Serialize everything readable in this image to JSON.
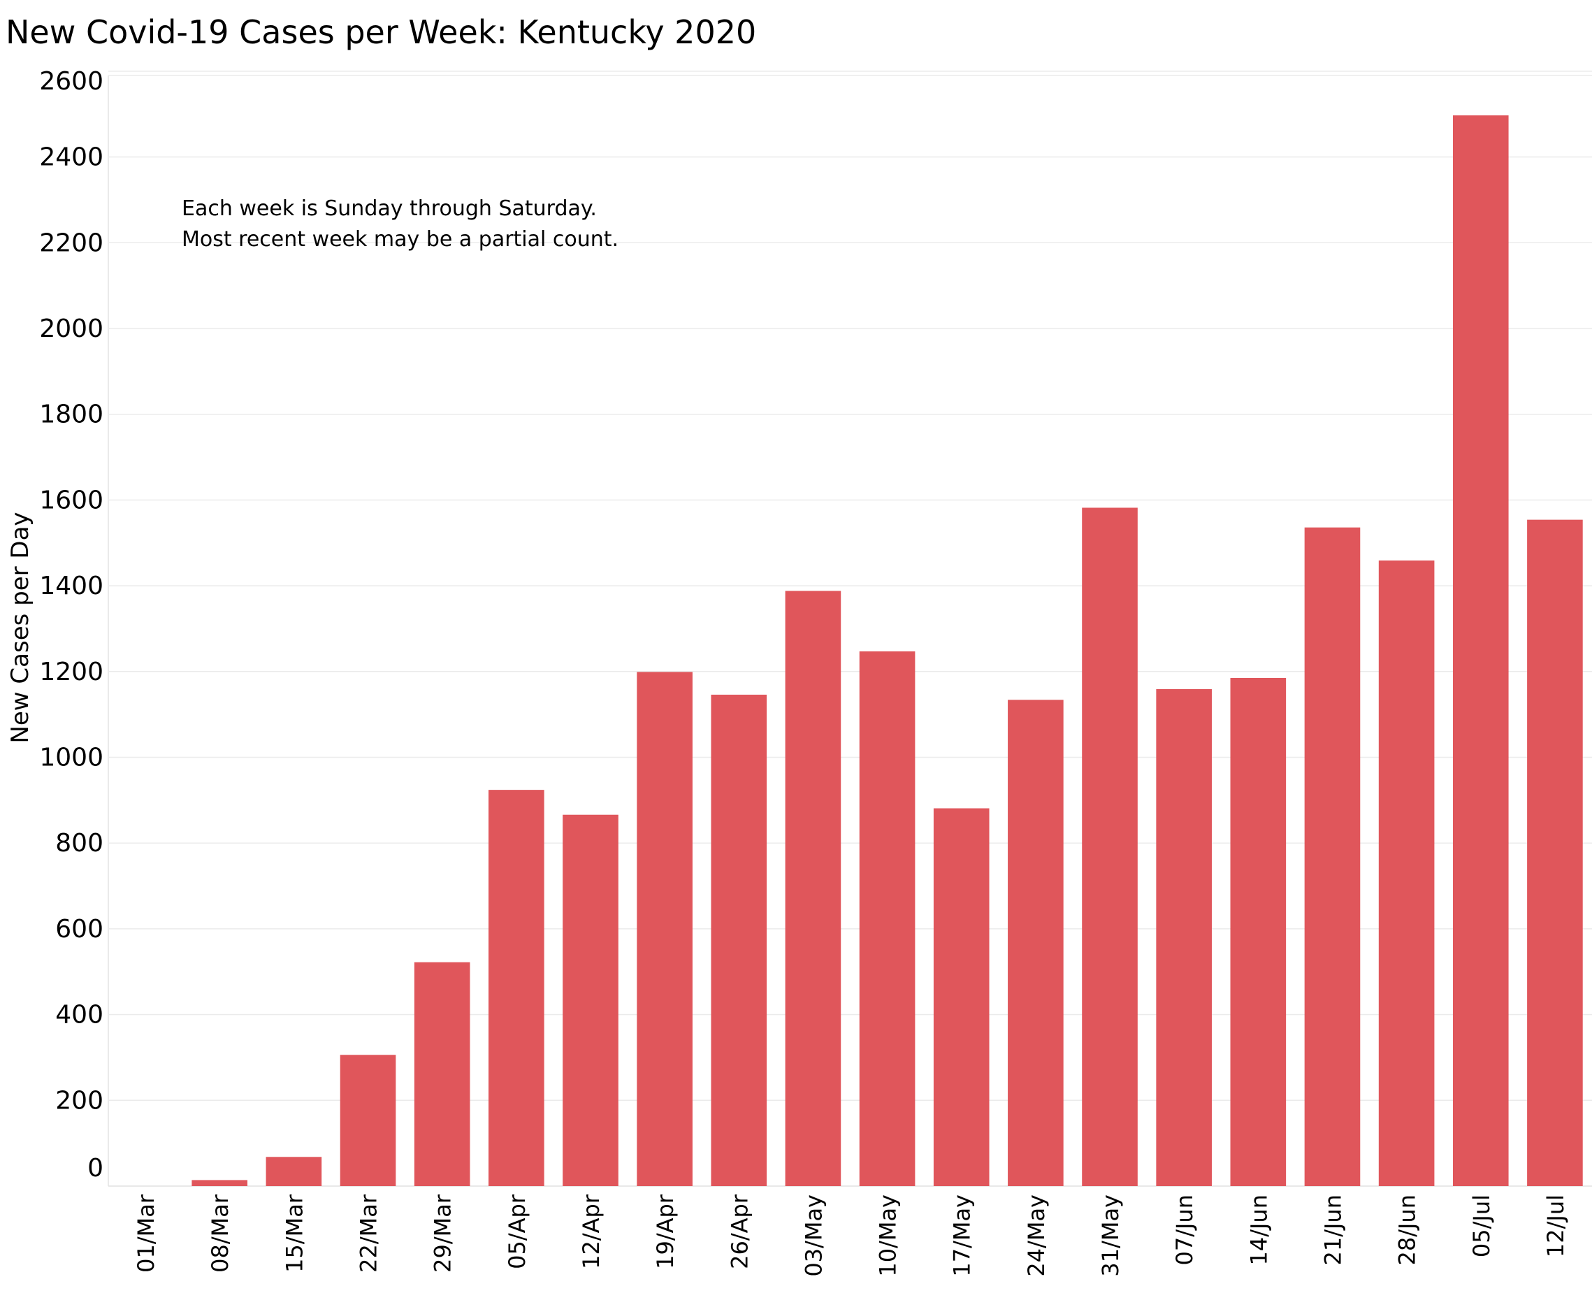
{
  "chart_data": {
    "type": "bar",
    "title": "New Covid-19 Cases per Week:  Kentucky 2020",
    "xlabel": "",
    "ylabel": "New Cases per Day",
    "annotation": [
      "Each week is Sunday through Saturday.",
      "Most recent week may be a partial count."
    ],
    "yticks": [
      0,
      200,
      400,
      600,
      800,
      1000,
      1200,
      1400,
      1600,
      1800,
      2000,
      2200,
      2400,
      2600
    ],
    "ylim": [
      0,
      2600
    ],
    "grid": true,
    "categories": [
      "01/Mar",
      "08/Mar",
      "15/Mar",
      "22/Mar",
      "29/Mar",
      "05/Apr",
      "12/Apr",
      "19/Apr",
      "26/Apr",
      "03/May",
      "10/May",
      "17/May",
      "24/May",
      "31/May",
      "07/Jun",
      "14/Jun",
      "21/Jun",
      "28/Jun",
      "05/Jul",
      "12/Jul"
    ],
    "values": [
      0,
      14,
      68,
      306,
      522,
      924,
      866,
      1199,
      1146,
      1388,
      1247,
      881,
      1134,
      1582,
      1159,
      1185,
      1536,
      1459,
      2497,
      1554
    ],
    "bar_color": "#E0565B",
    "grid_color": "#EBEBEB"
  }
}
